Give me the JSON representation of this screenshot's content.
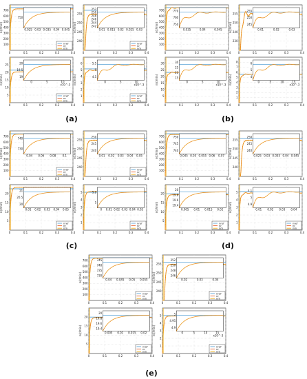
{
  "colors": {
    "nref": "#5ba3d6",
    "nr": "#e8602c",
    "nm": "#edb120",
    "grid": "#d8d8d8",
    "axis": "#222222",
    "inset_fill": "#ffffff"
  },
  "legend_items": [
    "nref",
    "nr",
    "nm"
  ],
  "chart_data": [
    {
      "id": "a1",
      "type": "line",
      "panel": "(a)",
      "caption": "(a)",
      "ylabel": "n(r/min)",
      "xlim": [
        0,
        0.4
      ],
      "ylim": [
        0,
        800
      ],
      "xticks": [
        "0",
        "0.1",
        "0.2",
        "0.3",
        "0.4"
      ],
      "yticks": [
        "100",
        "200",
        "300",
        "400",
        "500",
        "600",
        "700"
      ],
      "setpoint": 750,
      "final": 730,
      "rise": 0.02,
      "legend": true,
      "inset": {
        "xticks": [
          "0.025",
          "0.03",
          "0.035",
          "0.04",
          "0.045"
        ],
        "yticks": [
          "750"
        ]
      }
    },
    {
      "id": "a2",
      "type": "line",
      "panel": "(a)",
      "ylabel": "n(r/min)",
      "xlim": [
        0,
        0.4
      ],
      "ylim": [
        210,
        260
      ],
      "xticks": [
        "0",
        "0.1",
        "0.2",
        "0.3",
        "0.4"
      ],
      "yticks": [
        "240",
        "245",
        "250",
        "255"
      ],
      "setpoint": 254,
      "final": 250,
      "rise": 0.02,
      "legend": true,
      "inset": {
        "xticks": [
          "0.01",
          "0.015",
          "0.02",
          "0.025",
          "0.03"
        ],
        "yticks": [
          "252",
          "250",
          "248",
          "246",
          "244",
          "242"
        ]
      }
    },
    {
      "id": "a3",
      "type": "line",
      "panel": "(a)",
      "ylabel": "n(r/min)",
      "xlim": [
        0,
        0.4
      ],
      "ylim": [
        0,
        28
      ],
      "xticks": [
        "0",
        "0.1",
        "0.2",
        "0.3",
        "0.4"
      ],
      "yticks": [
        "5",
        "10",
        "15",
        "20",
        "25"
      ],
      "setpoint": 20,
      "final": 19,
      "rise": 0.02,
      "legend": true,
      "inset": {
        "xticks": [
          "0",
          "5",
          "10"
        ],
        "yticks": [
          "20",
          "19.5",
          "19"
        ],
        "exp": "x10^-3"
      }
    },
    {
      "id": "a4",
      "type": "line",
      "panel": "(a)",
      "ylabel": "n(r/min)",
      "xlim": [
        0,
        0.4
      ],
      "ylim": [
        0,
        7
      ],
      "xticks": [
        "0",
        "0.1",
        "0.2",
        "0.3",
        "0.4"
      ],
      "yticks": [
        "1",
        "2",
        "3",
        "4",
        "5",
        "6"
      ],
      "setpoint": 5.2,
      "final": 5,
      "rise": 0.02,
      "legend": true,
      "osc": true,
      "inset": {
        "xticks": [
          "0",
          "5",
          "10"
        ],
        "yticks": [
          "5.5",
          "5",
          "4.5"
        ],
        "exp": "x10^-3"
      }
    },
    {
      "id": "b1",
      "type": "line",
      "panel": "(b)",
      "caption": "(b)",
      "ylabel": "n(r/min)",
      "xlim": [
        0,
        0.4
      ],
      "ylim": [
        0,
        800
      ],
      "xticks": [
        "0",
        "0.1",
        "0.2",
        "0.3",
        "0.4"
      ],
      "yticks": [
        "100",
        "200",
        "300",
        "400",
        "500",
        "600",
        "700"
      ],
      "setpoint": 750,
      "final": 745,
      "rise": 0.02,
      "legend": false,
      "osc": true,
      "inset": {
        "xticks": [
          "0.035",
          "0.04",
          "0.045"
        ],
        "yticks": [
          "770",
          "760",
          "750"
        ]
      }
    },
    {
      "id": "b2",
      "type": "line",
      "panel": "(b)",
      "ylabel": "n(r/min)",
      "xlim": [
        0,
        0.4
      ],
      "ylim": [
        210,
        260
      ],
      "xticks": [
        "0",
        "0.1",
        "0.2",
        "0.3",
        "0.4"
      ],
      "yticks": [
        "230",
        "240",
        "250",
        "255"
      ],
      "setpoint": 252,
      "final": 250,
      "rise": 0.02,
      "legend": false,
      "osc": true,
      "inset": {
        "xticks": [
          "0.01",
          "0.02",
          "0.03"
        ],
        "yticks": [
          "255",
          "250",
          "245"
        ]
      }
    },
    {
      "id": "b3",
      "type": "line",
      "panel": "(b)",
      "ylabel": "n(r/min)",
      "xlim": [
        0,
        0.4
      ],
      "ylim": [
        0,
        30
      ],
      "xticks": [
        "0",
        "0.1",
        "0.2",
        "0.3",
        "0.4"
      ],
      "yticks": [
        "5",
        "10",
        "15",
        "20",
        "25",
        "30"
      ],
      "setpoint": 20,
      "final": 20,
      "rise": 0.02,
      "legend": false,
      "osc": true,
      "inset": {
        "xticks": [
          "0",
          "5",
          "10"
        ],
        "yticks": [
          "30",
          "25",
          "20",
          "15"
        ],
        "exp": "x10^-3"
      }
    },
    {
      "id": "b4",
      "type": "line",
      "panel": "(b)",
      "ylabel": "n(r/min)",
      "xlim": [
        0,
        0.4
      ],
      "ylim": [
        0,
        8
      ],
      "xticks": [
        "0",
        "0.1",
        "0.2",
        "0.3",
        "0.4"
      ],
      "yticks": [
        "1",
        "2",
        "3",
        "4",
        "5",
        "6",
        "7",
        "8"
      ],
      "setpoint": 5,
      "final": 5,
      "rise": 0.02,
      "legend": false,
      "osc": true,
      "inset": {
        "xticks": [
          "0",
          "5",
          "10",
          "15"
        ],
        "yticks": [
          "6",
          "5",
          "4"
        ],
        "exp": "x10^-3"
      }
    },
    {
      "id": "c1",
      "type": "line",
      "panel": "(c)",
      "caption": "(c)",
      "ylabel": "n(r/min)",
      "xlim": [
        0,
        0.4
      ],
      "ylim": [
        0,
        800
      ],
      "xticks": [
        "0",
        "0.1",
        "0.2",
        "0.3",
        "0.4"
      ],
      "yticks": [
        "100",
        "200",
        "300",
        "400",
        "500",
        "600",
        "700"
      ],
      "setpoint": 750,
      "final": 745,
      "rise": 0.02,
      "legend": true,
      "inset": {
        "xticks": [
          "0.04",
          "0.06",
          "0.08",
          "0.1"
        ],
        "yticks": [
          "740",
          "730"
        ]
      }
    },
    {
      "id": "c2",
      "type": "line",
      "panel": "(c)",
      "ylabel": "n(r/min)",
      "xlim": [
        0,
        0.4
      ],
      "ylim": [
        210,
        260
      ],
      "xticks": [
        "0",
        "0.1",
        "0.2",
        "0.3",
        "0.4"
      ],
      "yticks": [
        "240",
        "245",
        "250",
        "255"
      ],
      "setpoint": 252,
      "final": 250,
      "rise": 0.02,
      "legend": true,
      "inset": {
        "xticks": [
          "0.01",
          "0.02",
          "0.03",
          "0.04",
          "0.05"
        ],
        "yticks": [
          "250",
          "245",
          "240"
        ]
      }
    },
    {
      "id": "c3",
      "type": "line",
      "panel": "(c)",
      "ylabel": "n(r/min)",
      "xlim": [
        0,
        0.4
      ],
      "ylim": [
        0,
        22
      ],
      "xticks": [
        "0",
        "0.1",
        "0.2",
        "0.3",
        "0.4"
      ],
      "yticks": [
        "5",
        "10",
        "15",
        "20"
      ],
      "setpoint": 20,
      "final": 20.8,
      "rise": 0.02,
      "legend": true,
      "inset": {
        "xticks": [
          "0.01",
          "0.02",
          "0.03",
          "0.04",
          "0.05"
        ],
        "yticks": [
          "21",
          "20.5",
          "20"
        ]
      }
    },
    {
      "id": "c4",
      "type": "line",
      "panel": "(c)",
      "ylabel": "n(r/min)",
      "xlim": [
        0,
        0.4
      ],
      "ylim": [
        0,
        6
      ],
      "xticks": [
        "0",
        "0.1",
        "0.2",
        "0.3",
        "0.4"
      ],
      "yticks": [
        "1",
        "2",
        "3",
        "4",
        "5"
      ],
      "setpoint": 5,
      "final": 5.1,
      "rise": 0.02,
      "legend": true,
      "inset": {
        "xticks": [
          "0",
          "0.01",
          "0.02",
          "0.03",
          "0.04",
          "0.05"
        ],
        "yticks": [
          "5.2",
          "5"
        ]
      }
    },
    {
      "id": "d1",
      "type": "line",
      "panel": "(d)",
      "caption": "(d)",
      "ylabel": "n(r/min)",
      "xlim": [
        0,
        0.4
      ],
      "ylim": [
        0,
        800
      ],
      "xticks": [
        "0",
        "0.1",
        "0.2",
        "0.3",
        "0.4"
      ],
      "yticks": [
        "100",
        "200",
        "300",
        "400",
        "500",
        "600",
        "700"
      ],
      "setpoint": 750,
      "final": 740,
      "rise": 0.02,
      "legend": false,
      "inset": {
        "xticks": [
          "0.045",
          "0.05",
          "0.055",
          "0.06",
          "0.07"
        ],
        "yticks": [
          "750",
          "745",
          "740"
        ]
      }
    },
    {
      "id": "d2",
      "type": "line",
      "panel": "(d)",
      "ylabel": "n(r/min)",
      "xlim": [
        0,
        0.4
      ],
      "ylim": [
        210,
        260
      ],
      "xticks": [
        "0",
        "0.1",
        "0.2",
        "0.3",
        "0.4"
      ],
      "yticks": [
        "240",
        "245",
        "250",
        "255"
      ],
      "setpoint": 252,
      "final": 250,
      "rise": 0.02,
      "legend": false,
      "inset": {
        "xticks": [
          "0.025",
          "0.03",
          "0.035",
          "0.04",
          "0.045"
        ],
        "yticks": [
          "250",
          "245",
          "240"
        ]
      }
    },
    {
      "id": "d3",
      "type": "line",
      "panel": "(d)",
      "ylabel": "n(r/min)",
      "xlim": [
        0,
        0.4
      ],
      "ylim": [
        0,
        25
      ],
      "xticks": [
        "0",
        "0.1",
        "0.2",
        "0.3",
        "0.4"
      ],
      "yticks": [
        "5",
        "10",
        "15",
        "20"
      ],
      "setpoint": 20,
      "final": 19.5,
      "rise": 0.02,
      "legend": true,
      "inset": {
        "xticks": [
          "0.005",
          "0.01",
          "0.015",
          "0.02"
        ],
        "yticks": [
          "20",
          "19.8",
          "19.6",
          "19.4"
        ]
      }
    },
    {
      "id": "d4",
      "type": "line",
      "panel": "(d)",
      "ylabel": "n(r/min)",
      "xlim": [
        0,
        0.4
      ],
      "ylim": [
        0,
        6
      ],
      "xticks": [
        "0",
        "0.1",
        "0.2",
        "0.3",
        "0.4"
      ],
      "yticks": [
        "1",
        "2",
        "3",
        "4",
        "5"
      ],
      "setpoint": 5.1,
      "final": 4.9,
      "rise": 0.02,
      "legend": true,
      "osc": true,
      "inset": {
        "xticks": [
          "0.01",
          "0.02",
          "0.03",
          "0.04"
        ],
        "yticks": [
          "5.1",
          "5",
          "4.9"
        ]
      }
    },
    {
      "id": "e1",
      "type": "line",
      "panel": "(e)",
      "caption": "(e)",
      "ylabel": "n(r/min)",
      "xlim": [
        0,
        0.4
      ],
      "ylim": [
        0,
        800
      ],
      "xticks": [
        "0",
        "0.1",
        "0.2",
        "0.3",
        "0.4"
      ],
      "yticks": [
        "100",
        "200",
        "300",
        "400",
        "500",
        "600",
        "700"
      ],
      "setpoint": 750,
      "final": 745,
      "rise": 0.02,
      "legend": true,
      "inset": {
        "xticks": [
          "0.04",
          "0.045",
          "0.05",
          "0.055"
        ],
        "yticks": [
          "745",
          "740",
          "735",
          "730"
        ]
      }
    },
    {
      "id": "e2",
      "type": "line",
      "panel": "(e)",
      "ylabel": "n(r/min)",
      "xlim": [
        0,
        0.4
      ],
      "ylim": [
        210,
        260
      ],
      "xticks": [
        "0",
        "0.1",
        "0.2",
        "0.3",
        "0.4"
      ],
      "yticks": [
        "240",
        "245",
        "250",
        "255"
      ],
      "setpoint": 252,
      "final": 250,
      "rise": 0.02,
      "legend": true,
      "inset": {
        "xticks": [
          "0.02",
          "0.03",
          "0.04"
        ],
        "yticks": [
          "252",
          "250",
          "248",
          "246"
        ]
      }
    },
    {
      "id": "e3",
      "type": "line",
      "panel": "(e)",
      "ylabel": "n(r/min)",
      "xlim": [
        0,
        0.4
      ],
      "ylim": [
        0,
        25
      ],
      "xticks": [
        "0",
        "0.1",
        "0.2",
        "0.3",
        "0.4"
      ],
      "yticks": [
        "5",
        "10",
        "15",
        "20"
      ],
      "setpoint": 20,
      "final": 19.8,
      "rise": 0.02,
      "legend": true,
      "inset": {
        "xticks": [
          "0.005",
          "0.01",
          "0.015",
          "0.02"
        ],
        "yticks": [
          "20",
          "19.8",
          "19.6",
          "19.4"
        ]
      }
    },
    {
      "id": "e4",
      "type": "line",
      "panel": "(e)",
      "ylabel": "n(r/min)",
      "xlim": [
        0,
        0.4
      ],
      "ylim": [
        0,
        6
      ],
      "xticks": [
        "0",
        "0.1",
        "0.2",
        "0.3",
        "0.4"
      ],
      "yticks": [
        "1",
        "2",
        "3",
        "4",
        "5"
      ],
      "setpoint": 5,
      "final": 4.95,
      "rise": 0.02,
      "legend": true,
      "inset": {
        "xticks": [
          "0",
          "5",
          "10",
          "15"
        ],
        "yticks": [
          "5",
          "4.95",
          "4.9"
        ],
        "exp": "x10^-3"
      }
    }
  ]
}
